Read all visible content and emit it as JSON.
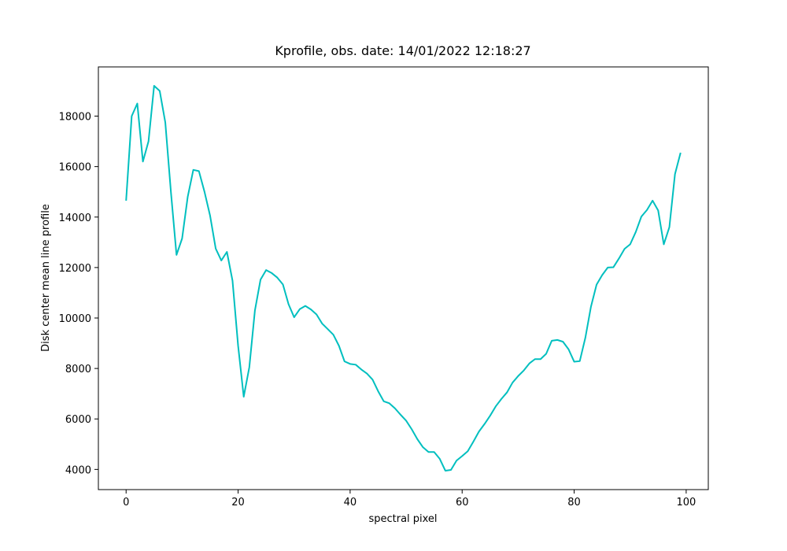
{
  "chart_data": {
    "type": "line",
    "title": "Kprofile, obs. date: 14/01/2022 12:18:27",
    "xlabel": "spectral pixel",
    "ylabel": "Disk center mean line profile",
    "color": "#00bfbf",
    "grid": false,
    "x": [
      0,
      1,
      2,
      3,
      4,
      5,
      6,
      7,
      8,
      9,
      10,
      11,
      12,
      13,
      14,
      15,
      16,
      17,
      18,
      19,
      20,
      21,
      22,
      23,
      24,
      25,
      26,
      27,
      28,
      29,
      30,
      31,
      32,
      33,
      34,
      35,
      36,
      37,
      38,
      39,
      40,
      41,
      42,
      43,
      44,
      45,
      46,
      47,
      48,
      49,
      50,
      51,
      52,
      53,
      54,
      55,
      56,
      57,
      58,
      59,
      60,
      61,
      62,
      63,
      64,
      65,
      66,
      67,
      68,
      69,
      70,
      71,
      72,
      73,
      74,
      75,
      76,
      77,
      78,
      79,
      80,
      81,
      82,
      83,
      84,
      85,
      86,
      87,
      88,
      89,
      90,
      91,
      92,
      93,
      94,
      95,
      96,
      97,
      98,
      99
    ],
    "values": [
      14650,
      18000,
      18500,
      16200,
      17000,
      19200,
      19000,
      17750,
      15000,
      12500,
      13150,
      14800,
      15870,
      15820,
      15000,
      14050,
      12750,
      12280,
      12620,
      11480,
      8900,
      6880,
      8050,
      10300,
      11520,
      11900,
      11780,
      11600,
      11330,
      10550,
      10030,
      10350,
      10480,
      10340,
      10140,
      9780,
      9560,
      9340,
      8900,
      8280,
      8180,
      8150,
      7960,
      7800,
      7560,
      7100,
      6700,
      6620,
      6420,
      6170,
      5930,
      5590,
      5200,
      4880,
      4690,
      4690,
      4420,
      3950,
      3980,
      4350,
      4530,
      4720,
      5100,
      5500,
      5800,
      6130,
      6500,
      6790,
      7050,
      7440,
      7700,
      7920,
      8200,
      8370,
      8370,
      8580,
      9100,
      9130,
      9060,
      8760,
      8270,
      8290,
      9220,
      10450,
      11320,
      11700,
      12000,
      12010,
      12360,
      12740,
      12920,
      13410,
      14020,
      14280,
      14650,
      14260,
      12920,
      13600,
      15700,
      16550
    ],
    "xlim": [
      -4.95,
      103.95
    ],
    "ylim": [
      3200,
      19950
    ],
    "xticks": [
      0,
      20,
      40,
      60,
      80,
      100
    ],
    "yticks": [
      4000,
      6000,
      8000,
      10000,
      12000,
      14000,
      16000,
      18000
    ]
  }
}
